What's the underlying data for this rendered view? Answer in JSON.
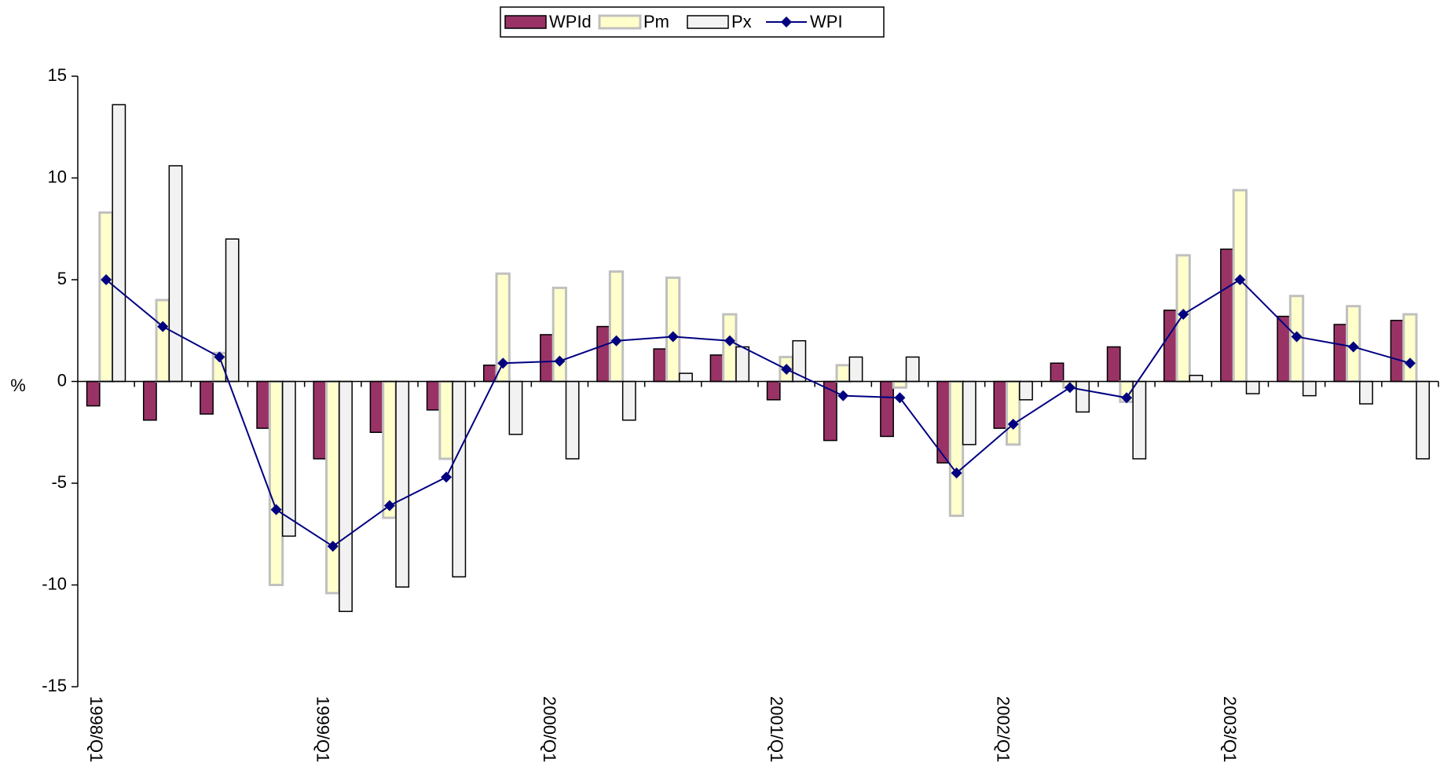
{
  "chart_data": {
    "type": "bar_line",
    "y_label": "%",
    "categories": [
      "1998/Q1",
      null,
      null,
      null,
      "1999/Q1",
      null,
      null,
      null,
      "2000/Q1",
      null,
      null,
      null,
      "2001/Q1",
      null,
      null,
      null,
      "2002/Q1",
      null,
      null,
      null,
      "2003/Q1",
      null,
      null,
      null
    ],
    "series": [
      {
        "name": "WPId",
        "type": "bar",
        "color": "#993366",
        "stroke": "#000000",
        "values": [
          -1.2,
          -1.9,
          -1.6,
          -2.3,
          -3.8,
          -2.5,
          -1.4,
          0.8,
          2.3,
          2.7,
          1.6,
          1.3,
          -0.9,
          -2.9,
          -2.7,
          -4.0,
          -2.3,
          0.9,
          1.7,
          3.5,
          6.5,
          3.2,
          2.8,
          3.0
        ]
      },
      {
        "name": "Pm",
        "type": "bar",
        "color": "#ffffcc",
        "stroke": "#c0c0c0",
        "values": [
          8.3,
          4.0,
          1.4,
          -10.0,
          -10.4,
          -6.7,
          -3.8,
          5.3,
          4.6,
          5.4,
          5.1,
          3.3,
          1.2,
          0.8,
          -0.3,
          -6.6,
          -3.1,
          -0.3,
          -1.0,
          6.2,
          9.4,
          4.2,
          3.7,
          3.3
        ]
      },
      {
        "name": "Px",
        "type": "bar",
        "color": "#f2f2f2",
        "stroke": "#000000",
        "values": [
          13.6,
          10.6,
          7.0,
          -7.6,
          -11.3,
          -10.1,
          -9.6,
          -2.6,
          -3.8,
          -1.9,
          0.4,
          1.7,
          2.0,
          1.2,
          1.2,
          -3.1,
          -0.9,
          -1.5,
          -3.8,
          0.3,
          -0.6,
          -0.7,
          -1.1,
          -3.8
        ]
      },
      {
        "name": "WPI",
        "type": "line",
        "color": "#000080",
        "stroke": "#000080",
        "values": [
          5.0,
          2.7,
          1.2,
          -6.3,
          -8.1,
          -6.1,
          -4.7,
          0.9,
          1.0,
          2.0,
          2.2,
          2.0,
          0.6,
          -0.7,
          -0.8,
          -4.5,
          -2.1,
          -0.3,
          -0.8,
          3.3,
          5.0,
          2.2,
          1.7,
          0.9
        ]
      }
    ],
    "ylim": [
      -15,
      15
    ],
    "yticks": [
      -15,
      -10,
      -5,
      0,
      5,
      10,
      15
    ],
    "grid": false,
    "legend": "top"
  }
}
